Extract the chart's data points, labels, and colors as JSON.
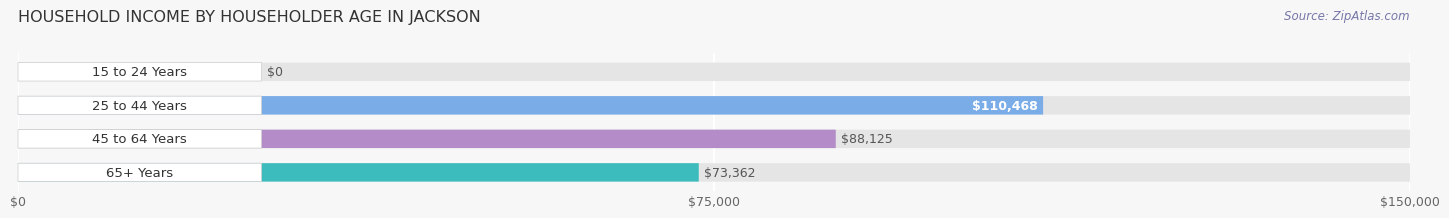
{
  "title": "HOUSEHOLD INCOME BY HOUSEHOLDER AGE IN JACKSON",
  "source": "Source: ZipAtlas.com",
  "categories": [
    "15 to 24 Years",
    "25 to 44 Years",
    "45 to 64 Years",
    "65+ Years"
  ],
  "values": [
    0,
    110468,
    88125,
    73362
  ],
  "bar_colors": [
    "#f2a0aa",
    "#7aace8",
    "#b48dc8",
    "#3dbcbe"
  ],
  "value_labels": [
    "$0",
    "$110,468",
    "$88,125",
    "$73,362"
  ],
  "value_label_inside": [
    false,
    true,
    false,
    false
  ],
  "xlim": [
    0,
    150000
  ],
  "xtick_vals": [
    0,
    75000,
    150000
  ],
  "xtick_labels": [
    "$0",
    "$75,000",
    "$150,000"
  ],
  "background_color": "#f7f7f7",
  "bar_bg_color": "#e5e5e5",
  "label_bg_color": "#ffffff",
  "grid_color": "#ffffff",
  "title_fontsize": 11.5,
  "source_fontsize": 8.5,
  "label_fontsize": 9.5,
  "value_fontsize": 9,
  "tick_fontsize": 9,
  "bar_height": 0.55,
  "bar_gap": 1.0
}
